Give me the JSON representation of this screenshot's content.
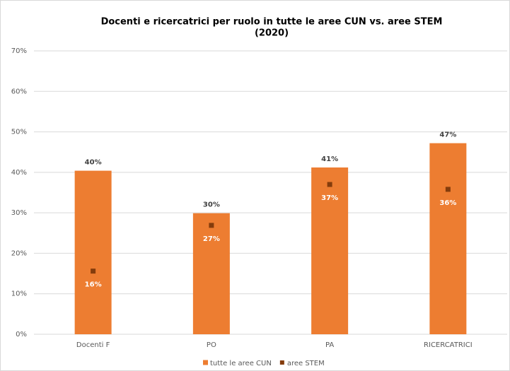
{
  "chart_data": {
    "type": "bar",
    "title": [
      "Docenti e ricercatrici per ruolo in tutte le aree CUN vs. aree STEM",
      "(2020)"
    ],
    "categories": [
      "Docenti F",
      "PO",
      "PA",
      "RICERCATRICI"
    ],
    "series": [
      {
        "name": "tutte le aree CUN",
        "color": "#ED7D31",
        "kind": "bar",
        "values": [
          40.4,
          29.9,
          41.2,
          47.2
        ],
        "value_labels": [
          "40%",
          "30%",
          "41%",
          "47%"
        ]
      },
      {
        "name": "aree STEM",
        "color": "#843C0C",
        "kind": "marker",
        "values": [
          15.6,
          26.9,
          37.0,
          35.8
        ],
        "value_labels": [
          "16%",
          "27%",
          "37%",
          "36%"
        ]
      }
    ],
    "ylim": [
      0,
      70
    ],
    "yticks": [
      {
        "value": 0,
        "label": "0%"
      },
      {
        "value": 10,
        "label": "10%"
      },
      {
        "value": 20,
        "label": "20%"
      },
      {
        "value": 30,
        "label": "30%"
      },
      {
        "value": 40,
        "label": "40%"
      },
      {
        "value": 50,
        "label": "50%"
      },
      {
        "value": 60,
        "label": "60%"
      },
      {
        "value": 70,
        "label": "70%"
      }
    ],
    "grid": true,
    "legend": "bottom"
  }
}
